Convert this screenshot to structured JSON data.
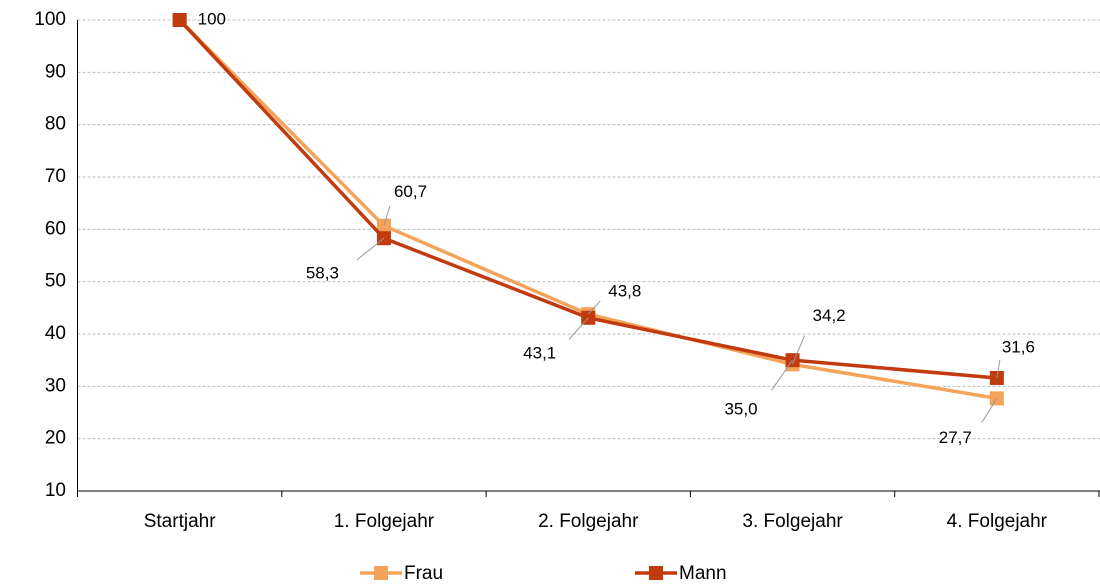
{
  "chart_data": {
    "type": "line",
    "categories": [
      "Startjahr",
      "1. Folgejahr",
      "2. Folgejahr",
      "3. Folgejahr",
      "4. Folgejahr"
    ],
    "series": [
      {
        "name": "Frau",
        "color": "#f4a45a",
        "values": [
          100,
          60.7,
          43.8,
          34.2,
          27.7
        ],
        "value_labels": [
          null,
          "60,7",
          "43,8",
          "34,2",
          "27,7"
        ]
      },
      {
        "name": "Mann",
        "color": "#c23b0e",
        "values": [
          100,
          58.3,
          43.1,
          35.0,
          31.6
        ],
        "value_labels": [
          "100",
          "58,3",
          "43,1",
          "35,0",
          "31,6"
        ]
      }
    ],
    "ylim": [
      10,
      100
    ],
    "yticks": [
      10,
      20,
      30,
      40,
      50,
      60,
      70,
      80,
      90,
      100
    ],
    "grid": true
  }
}
